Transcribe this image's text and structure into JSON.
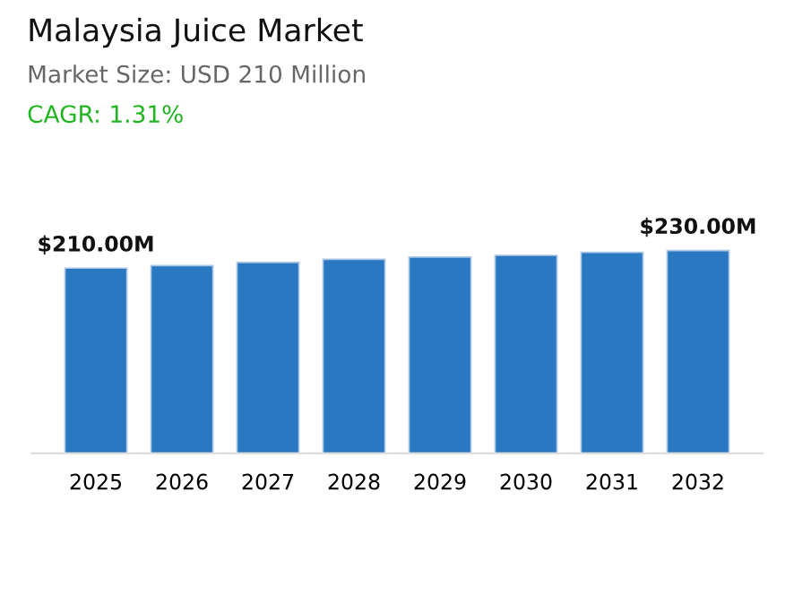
{
  "chart_data": {
    "type": "bar",
    "title": "Malaysia Juice Market",
    "subtitle": "Market Size: USD 210 Million",
    "annotations": [
      "CAGR: 1.31%"
    ],
    "categories": [
      "2025",
      "2026",
      "2027",
      "2028",
      "2029",
      "2030",
      "2031",
      "2032"
    ],
    "values": [
      210,
      213,
      216.5,
      220,
      222.5,
      224.5,
      228,
      230
    ],
    "value_labels": [
      "$210.00M",
      null,
      null,
      null,
      null,
      null,
      null,
      "$230.00M"
    ],
    "color": "#2b78c2",
    "grid": false,
    "legend": false
  }
}
